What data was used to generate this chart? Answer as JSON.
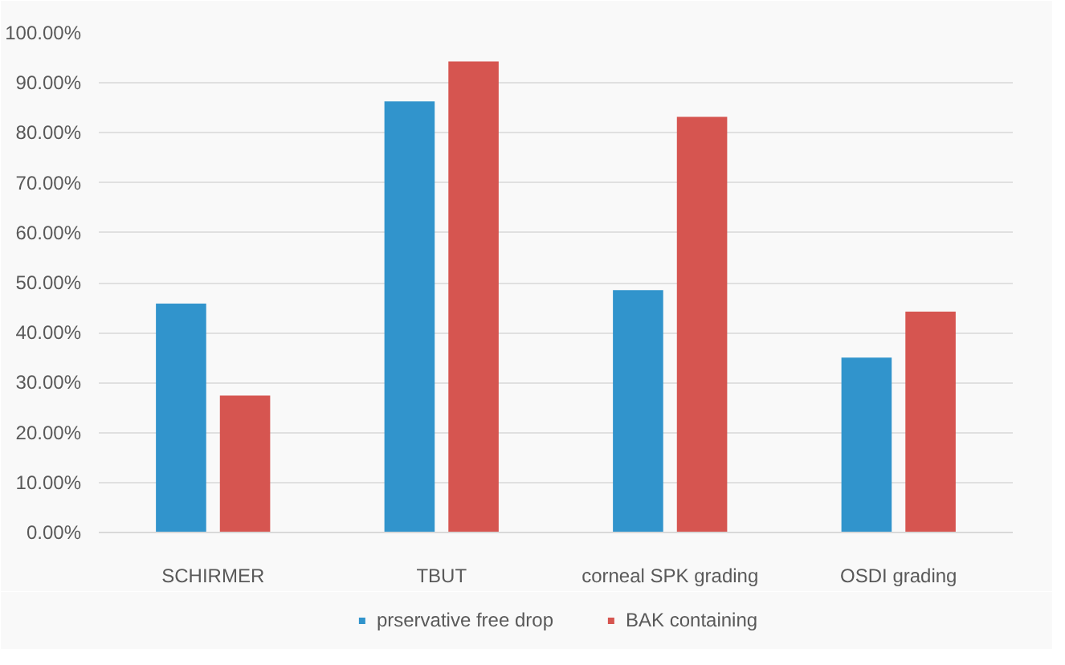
{
  "chart_data": {
    "type": "bar",
    "categories": [
      "SCHIRMER",
      "TBUT",
      "corneal SPK grading",
      "OSDI grading"
    ],
    "series": [
      {
        "name": "prservative free drop",
        "color": "#3194cc",
        "values": [
          45.8,
          86.3,
          48.5,
          35.0
        ]
      },
      {
        "name": "BAK containing",
        "color": "#d65550",
        "values": [
          27.4,
          94.3,
          83.2,
          44.2
        ]
      }
    ],
    "ylim": [
      0,
      100
    ],
    "yticks": [
      {
        "value": 0,
        "label": "0.00%"
      },
      {
        "value": 10,
        "label": "10.00%"
      },
      {
        "value": 20,
        "label": "20.00%"
      },
      {
        "value": 30,
        "label": "30.00%"
      },
      {
        "value": 40,
        "label": "40.00%"
      },
      {
        "value": 50,
        "label": "50.00%"
      },
      {
        "value": 60,
        "label": "60.00%"
      },
      {
        "value": 70,
        "label": "70.00%"
      },
      {
        "value": 80,
        "label": "80.00%"
      },
      {
        "value": 90,
        "label": "90.00%"
      },
      {
        "value": 100,
        "label": "100.00%"
      }
    ],
    "grid": "y",
    "legend": "bottom"
  }
}
